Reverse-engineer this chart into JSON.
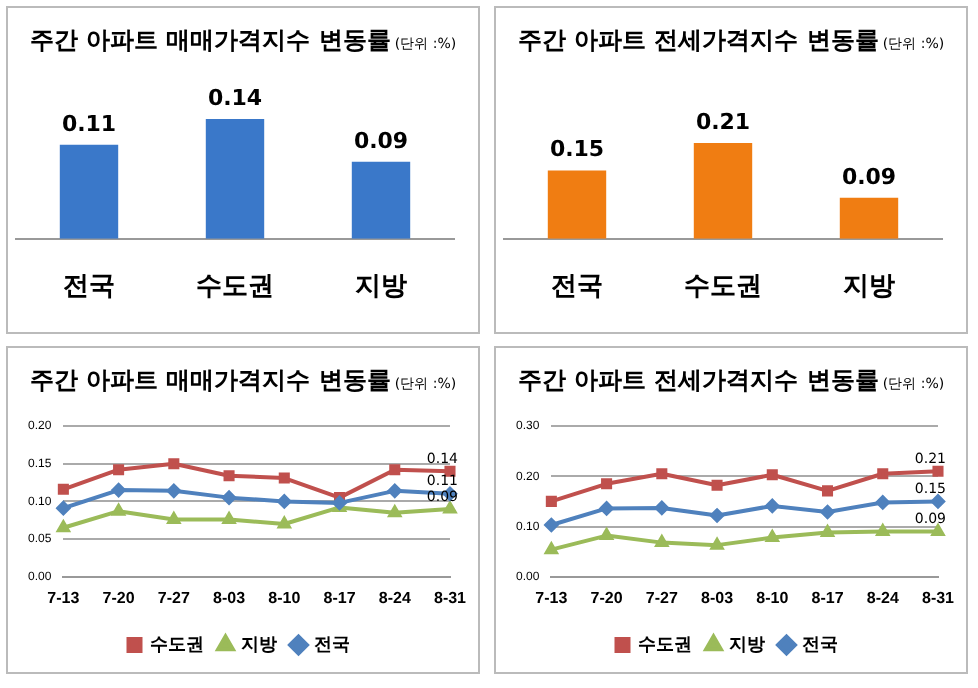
{
  "chart_data": [
    {
      "type": "bar",
      "title": "주간 아파트 매매가격지수 변동률",
      "subtitle": "(단위 :%)",
      "categories": [
        "전국",
        "수도권",
        "지방"
      ],
      "values": [
        0.11,
        0.14,
        0.09
      ],
      "color": "#3a78c9",
      "data_labels": true,
      "grid": false,
      "legend": false
    },
    {
      "type": "bar",
      "title": "주간 아파트 전세가격지수 변동률",
      "subtitle": "(단위 :%)",
      "categories": [
        "전국",
        "수도권",
        "지방"
      ],
      "values": [
        0.15,
        0.21,
        0.09
      ],
      "color": "#f07d12",
      "data_labels": true,
      "grid": false,
      "legend": false
    },
    {
      "type": "line",
      "title": "주간 아파트 매매가격지수 변동률",
      "subtitle": "(단위 :%)",
      "categories": [
        "7-13",
        "7-20",
        "7-27",
        "8-03",
        "8-10",
        "8-17",
        "8-24",
        "8-31"
      ],
      "ylim": [
        0,
        0.2
      ],
      "yticks": [
        {
          "value": 0,
          "label": "0.00"
        },
        {
          "value": 0.05,
          "label": "0.05"
        },
        {
          "value": 0.1,
          "label": "0.10"
        },
        {
          "value": 0.15,
          "label": "0.15"
        },
        {
          "value": 0.2,
          "label": "0.20"
        }
      ],
      "grid": "y",
      "legend": "bottom",
      "series": [
        {
          "name": "수도권",
          "color": "#c0504d",
          "marker": "square",
          "values": [
            0.116,
            0.142,
            0.15,
            0.134,
            0.131,
            0.105,
            0.142,
            0.14
          ],
          "value_labels": [
            null,
            null,
            null,
            null,
            null,
            null,
            null,
            "0.14"
          ]
        },
        {
          "name": "지방",
          "color": "#9bbb59",
          "marker": "triangle",
          "values": [
            0.065,
            0.087,
            0.076,
            0.076,
            0.07,
            0.092,
            0.085,
            0.09
          ],
          "value_labels": [
            null,
            null,
            null,
            null,
            null,
            null,
            null,
            "0.09"
          ]
        },
        {
          "name": "전국",
          "color": "#4f81bd",
          "marker": "diamond",
          "values": [
            0.091,
            0.115,
            0.114,
            0.105,
            0.1,
            0.098,
            0.114,
            0.11
          ],
          "value_labels": [
            null,
            null,
            null,
            null,
            null,
            null,
            null,
            "0.11"
          ]
        }
      ]
    },
    {
      "type": "line",
      "title": "주간 아파트 전세가격지수 변동률",
      "subtitle": "(단위 :%)",
      "categories": [
        "7-13",
        "7-20",
        "7-27",
        "8-03",
        "8-10",
        "8-17",
        "8-24",
        "8-31"
      ],
      "ylim": [
        0,
        0.3
      ],
      "yticks": [
        {
          "value": 0,
          "label": "0.00"
        },
        {
          "value": 0.1,
          "label": "0.10"
        },
        {
          "value": 0.2,
          "label": "0.20"
        },
        {
          "value": 0.3,
          "label": "0.30"
        }
      ],
      "grid": "y",
      "legend": "bottom",
      "series": [
        {
          "name": "수도권",
          "color": "#c0504d",
          "marker": "square",
          "values": [
            0.15,
            0.185,
            0.205,
            0.182,
            0.203,
            0.171,
            0.205,
            0.21
          ],
          "value_labels": [
            null,
            null,
            null,
            null,
            null,
            null,
            null,
            "0.21"
          ]
        },
        {
          "name": "지방",
          "color": "#9bbb59",
          "marker": "triangle",
          "values": [
            0.054,
            0.082,
            0.068,
            0.063,
            0.078,
            0.088,
            0.09,
            0.09
          ],
          "value_labels": [
            null,
            null,
            null,
            null,
            null,
            null,
            null,
            "0.09"
          ]
        },
        {
          "name": "전국",
          "color": "#4f81bd",
          "marker": "diamond",
          "values": [
            0.103,
            0.136,
            0.137,
            0.122,
            0.141,
            0.129,
            0.148,
            0.15
          ],
          "value_labels": [
            null,
            null,
            null,
            null,
            null,
            null,
            null,
            "0.15"
          ]
        }
      ]
    }
  ]
}
